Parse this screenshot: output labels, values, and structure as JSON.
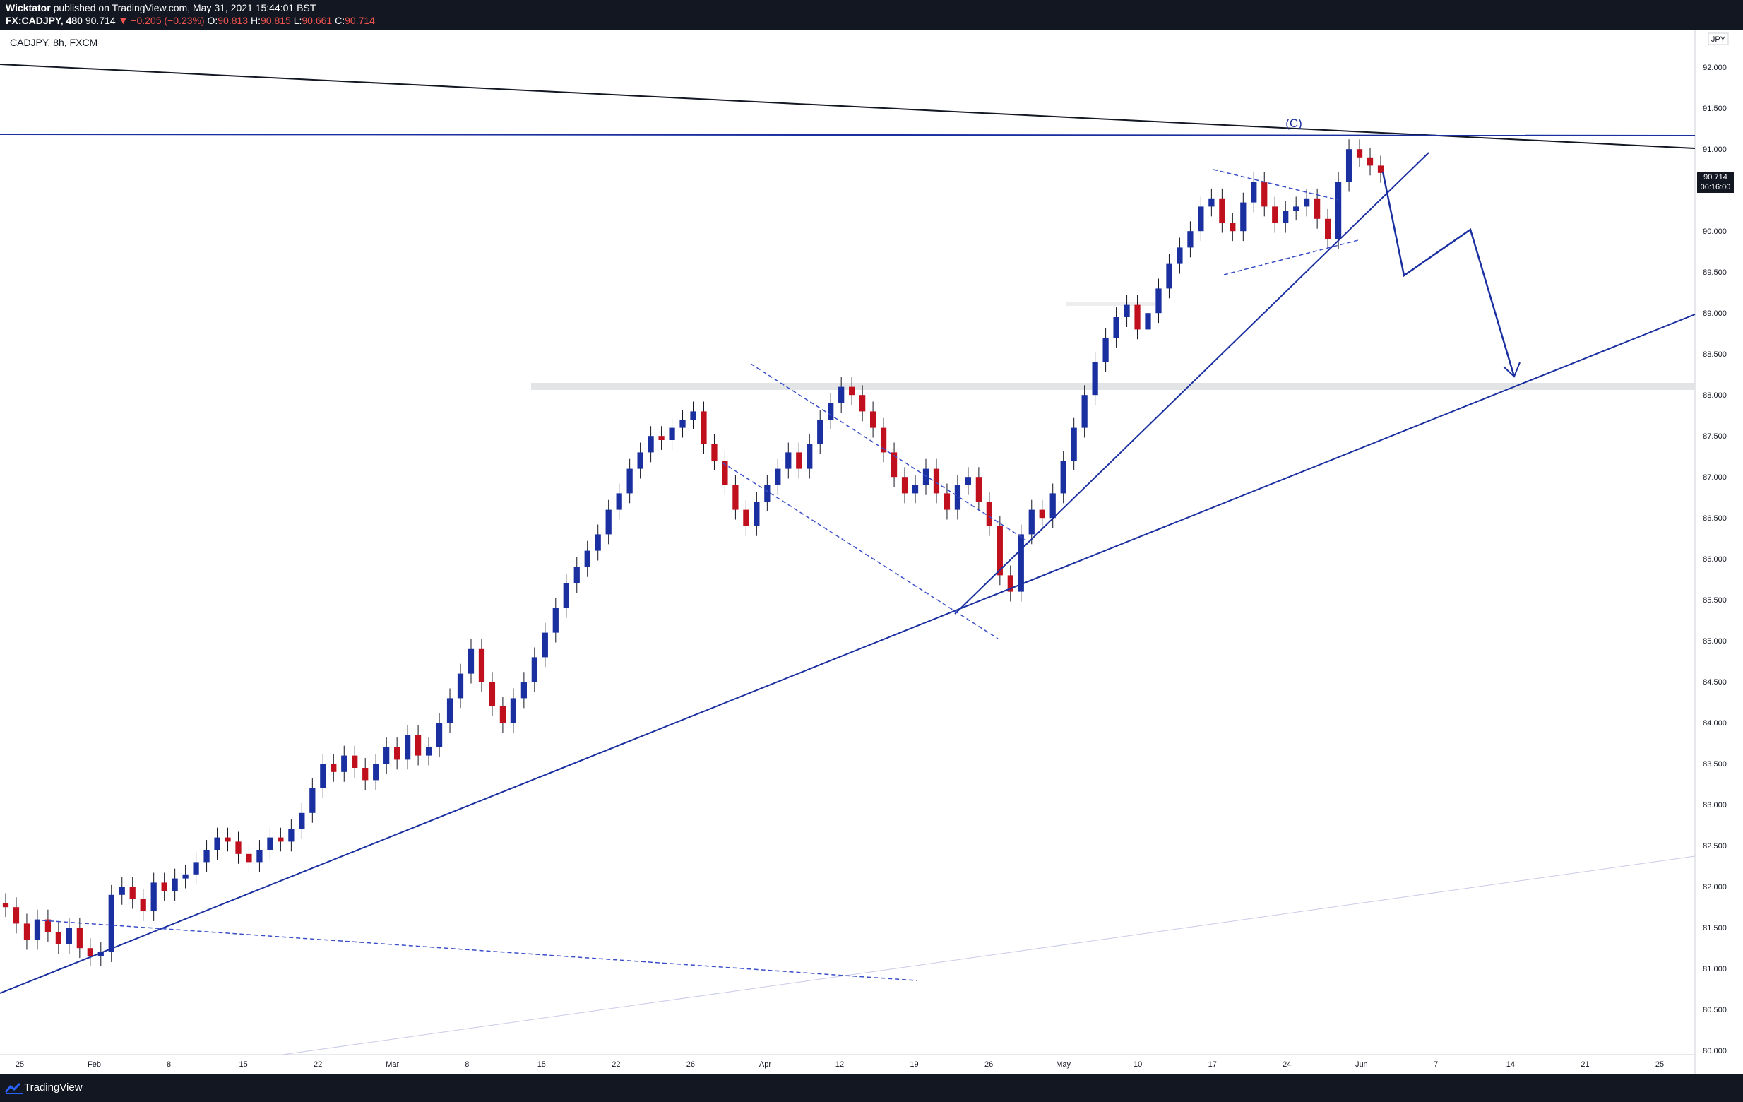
{
  "header": {
    "author": "Wicktator",
    "published_text": "published on TradingView.com, May 31, 2021 15:44:01 BST",
    "symbol": "FX:CADJPY, 480",
    "last": "90.714",
    "change": "▼ −0.205 (−0.23%)",
    "o_label": "O:",
    "o_value": "90.813",
    "h_label": "H:",
    "h_value": "90.815",
    "l_label": "L:",
    "l_value": "90.661",
    "c_label": "C:",
    "c_value": "90.714"
  },
  "chart_label": "CADJPY, 8h, FXCM",
  "currency": "JPY",
  "price_tag": {
    "price": "90.714",
    "countdown": "06:16:00"
  },
  "wave_label": "(C)",
  "footer": {
    "brand": "TradingView"
  },
  "colors": {
    "up": "#1a2fa0",
    "down": "#c0101e",
    "line": "#1a2fa0",
    "trendline_dark": "#131722",
    "background": "#ffffff",
    "bar": "#131722"
  },
  "chart_data": {
    "type": "candlestick",
    "title": "CADJPY, 8h, FXCM",
    "ylabel": "JPY",
    "ylim": [
      79.95,
      92.45
    ],
    "y_ticks": [
      "80.000",
      "80.500",
      "81.000",
      "81.500",
      "82.000",
      "82.500",
      "83.000",
      "83.500",
      "84.000",
      "84.500",
      "85.000",
      "85.500",
      "86.000",
      "86.500",
      "87.000",
      "87.500",
      "88.000",
      "88.500",
      "89.000",
      "89.500",
      "90.000",
      "90.500",
      "91.000",
      "91.500",
      "92.000"
    ],
    "x_ticks": [
      "25",
      "Feb",
      "8",
      "15",
      "22",
      "Mar",
      "8",
      "15",
      "22",
      "26",
      "Apr",
      "12",
      "19",
      "26",
      "May",
      "10",
      "17",
      "24",
      "Jun",
      "7",
      "14",
      "21",
      "25"
    ],
    "candles_close_approx": [
      81.75,
      81.55,
      81.35,
      81.6,
      81.45,
      81.3,
      81.5,
      81.25,
      81.15,
      81.2,
      81.9,
      82.0,
      81.85,
      81.7,
      82.05,
      81.95,
      82.1,
      82.15,
      82.3,
      82.45,
      82.6,
      82.55,
      82.4,
      82.3,
      82.45,
      82.6,
      82.55,
      82.7,
      82.9,
      83.2,
      83.5,
      83.4,
      83.6,
      83.45,
      83.3,
      83.5,
      83.7,
      83.55,
      83.85,
      83.6,
      83.7,
      84.0,
      84.3,
      84.6,
      84.9,
      84.5,
      84.2,
      84.0,
      84.3,
      84.5,
      84.8,
      85.1,
      85.4,
      85.7,
      85.9,
      86.1,
      86.3,
      86.6,
      86.8,
      87.1,
      87.3,
      87.5,
      87.45,
      87.6,
      87.7,
      87.8,
      87.4,
      87.2,
      86.9,
      86.6,
      86.4,
      86.7,
      86.9,
      87.1,
      87.3,
      87.1,
      87.4,
      87.7,
      87.9,
      88.1,
      88.0,
      87.8,
      87.6,
      87.3,
      87.0,
      86.8,
      86.9,
      87.1,
      86.8,
      86.6,
      86.9,
      87.0,
      86.7,
      86.4,
      85.8,
      85.6,
      86.3,
      86.6,
      86.5,
      86.8,
      87.2,
      87.6,
      88.0,
      88.4,
      88.7,
      88.95,
      89.1,
      88.8,
      89.0,
      89.3,
      89.6,
      89.8,
      90.0,
      90.3,
      90.4,
      90.1,
      90.0,
      90.35,
      90.6,
      90.3,
      90.1,
      90.25,
      90.3,
      90.4,
      90.15,
      89.9,
      90.6,
      91.0,
      90.9,
      90.8,
      90.71
    ],
    "annotations": [
      "(C)"
    ],
    "grid": false
  }
}
